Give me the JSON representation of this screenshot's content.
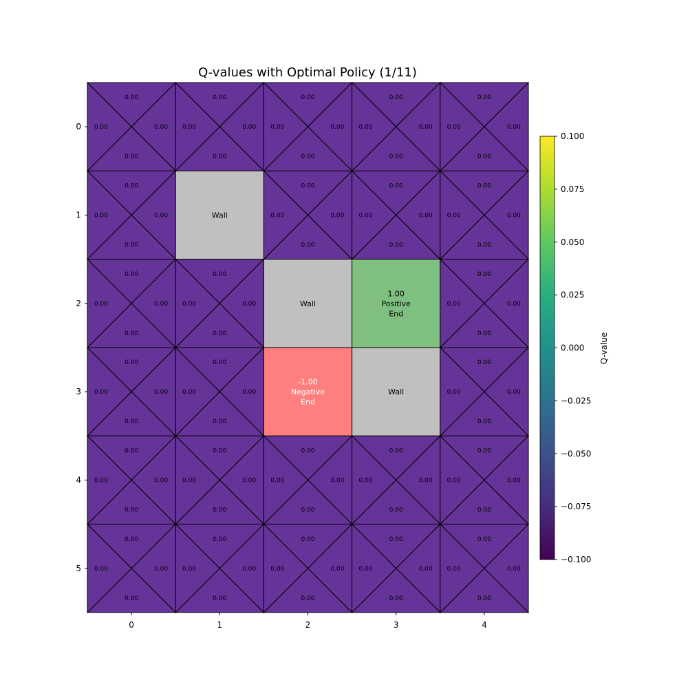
{
  "chart_data": {
    "type": "heatmap",
    "title": "Q-values with Optimal Policy (1/11)",
    "rows": 6,
    "cols": 5,
    "x_ticks": [
      "0",
      "1",
      "2",
      "3",
      "4"
    ],
    "y_ticks": [
      "0",
      "1",
      "2",
      "3",
      "4",
      "5"
    ],
    "actions": [
      "up",
      "right",
      "down",
      "left"
    ],
    "q_value_label": "0.00",
    "q_value": 0.0,
    "cell_color": "#663399",
    "walls": [
      {
        "row": 1,
        "col": 1,
        "label": "Wall"
      },
      {
        "row": 2,
        "col": 2,
        "label": "Wall"
      },
      {
        "row": 3,
        "col": 3,
        "label": "Wall"
      }
    ],
    "wall_color": "#c0c0c0",
    "terminals": [
      {
        "row": 2,
        "col": 3,
        "lines": [
          "1.00",
          "Positive",
          "End"
        ],
        "value": 1.0,
        "color": "#7fbf7f",
        "text_color": "#000000"
      },
      {
        "row": 3,
        "col": 2,
        "lines": [
          "-1.00",
          "Negative",
          "End"
        ],
        "value": -1.0,
        "color": "#ff7f7f",
        "text_color": "#ffffff"
      }
    ],
    "colorbar": {
      "label": "Q-value",
      "min": -0.1,
      "max": 0.1,
      "colormap": "viridis",
      "ticks": [
        "0.100",
        "0.075",
        "0.050",
        "0.025",
        "0.000",
        "−0.025",
        "−0.050",
        "−0.075",
        "−0.100"
      ]
    }
  }
}
